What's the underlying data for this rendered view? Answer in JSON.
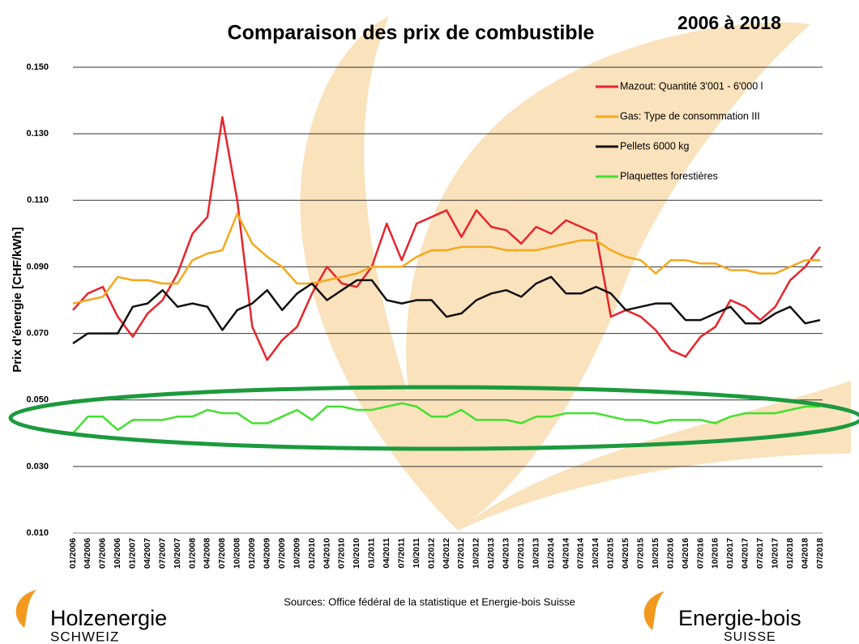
{
  "chart_data": {
    "type": "line",
    "title": "Comparaison des prix de combustible",
    "subtitle": "2006 à 2018",
    "y_label": "Prix d'énergie [CHF/kWh]",
    "source": "Sources: Office fédéral de la statistique et Energie-bois Suisse",
    "categories": [
      "01/2006",
      "04/2006",
      "07/2006",
      "10/2006",
      "01/2007",
      "04/2007",
      "07/2007",
      "10/2007",
      "01/2008",
      "04/2008",
      "07/2008",
      "10/2008",
      "01/2009",
      "04/2009",
      "07/2009",
      "10/2009",
      "01/2010",
      "04/2010",
      "07/2010",
      "10/2010",
      "01/2011",
      "04/2011",
      "07/2011",
      "10/2011",
      "01/2012",
      "04/2012",
      "07/2012",
      "10/2012",
      "01/2013",
      "04/2013",
      "07/2013",
      "10/2013",
      "01/2014",
      "04/2014",
      "07/2014",
      "10/2014",
      "01/2015",
      "04/2015",
      "07/2015",
      "10/2015",
      "01/2016",
      "04/2016",
      "07/2016",
      "10/2016",
      "01/2017",
      "04/2017",
      "07/2017",
      "10/2017",
      "01/2018",
      "04/2018",
      "07/2018"
    ],
    "series": [
      {
        "name": "Mazout: Quantité 3'001 - 6'000 l",
        "color": "#e8242b",
        "values": [
          0.077,
          0.082,
          0.084,
          0.075,
          0.069,
          0.076,
          0.08,
          0.088,
          0.1,
          0.105,
          0.135,
          0.11,
          0.072,
          0.062,
          0.068,
          0.072,
          0.082,
          0.09,
          0.085,
          0.084,
          0.09,
          0.103,
          0.092,
          0.103,
          0.105,
          0.107,
          0.099,
          0.107,
          0.102,
          0.101,
          0.097,
          0.102,
          0.1,
          0.104,
          0.102,
          0.1,
          0.075,
          0.077,
          0.075,
          0.071,
          0.065,
          0.063,
          0.069,
          0.072,
          0.08,
          0.078,
          0.074,
          0.078,
          0.086,
          0.09,
          0.096
        ]
      },
      {
        "name": "Gas: Type de consommation III",
        "color": "#f5a81c",
        "values": [
          0.079,
          0.08,
          0.081,
          0.087,
          0.086,
          0.086,
          0.085,
          0.085,
          0.092,
          0.094,
          0.095,
          0.106,
          0.097,
          0.093,
          0.09,
          0.085,
          0.085,
          0.086,
          0.087,
          0.088,
          0.09,
          0.09,
          0.09,
          0.093,
          0.095,
          0.095,
          0.096,
          0.096,
          0.096,
          0.095,
          0.095,
          0.095,
          0.096,
          0.097,
          0.098,
          0.098,
          0.095,
          0.093,
          0.092,
          0.088,
          0.092,
          0.092,
          0.091,
          0.091,
          0.089,
          0.089,
          0.088,
          0.088,
          0.09,
          0.092,
          0.092
        ]
      },
      {
        "name": "Pellets 6000 kg",
        "color": "#111111",
        "values": [
          0.067,
          0.07,
          0.07,
          0.07,
          0.078,
          0.079,
          0.083,
          0.078,
          0.079,
          0.078,
          0.071,
          0.077,
          0.079,
          0.083,
          0.077,
          0.082,
          0.085,
          0.08,
          0.083,
          0.086,
          0.086,
          0.08,
          0.079,
          0.08,
          0.08,
          0.075,
          0.076,
          0.08,
          0.082,
          0.083,
          0.081,
          0.085,
          0.087,
          0.082,
          0.082,
          0.084,
          0.082,
          0.077,
          0.078,
          0.079,
          0.079,
          0.074,
          0.074,
          0.076,
          0.078,
          0.073,
          0.073,
          0.076,
          0.078,
          0.073,
          0.074
        ]
      },
      {
        "name": "Plaquettes forestières",
        "color": "#43e02f",
        "values": [
          0.04,
          0.045,
          0.045,
          0.041,
          0.044,
          0.044,
          0.044,
          0.045,
          0.045,
          0.047,
          0.046,
          0.046,
          0.043,
          0.043,
          0.045,
          0.047,
          0.044,
          0.048,
          0.048,
          0.047,
          0.047,
          0.048,
          0.049,
          0.048,
          0.045,
          0.045,
          0.047,
          0.044,
          0.044,
          0.044,
          0.043,
          0.045,
          0.045,
          0.046,
          0.046,
          0.046,
          0.045,
          0.044,
          0.044,
          0.043,
          0.044,
          0.044,
          0.044,
          0.043,
          0.045,
          0.046,
          0.046,
          0.046,
          0.047,
          0.048,
          0.048
        ]
      }
    ],
    "ylim": [
      0.01,
      0.15
    ],
    "yticks": [
      {
        "value": 0.01,
        "label": "0.010"
      },
      {
        "value": 0.03,
        "label": "0.030"
      },
      {
        "value": 0.05,
        "label": "0.050"
      },
      {
        "value": 0.07,
        "label": "0.070"
      },
      {
        "value": 0.09,
        "label": "0.090"
      },
      {
        "value": 0.11,
        "label": "0.110"
      },
      {
        "value": 0.13,
        "label": "0.130"
      },
      {
        "value": 0.15,
        "label": "0.150"
      }
    ],
    "grid": true,
    "legend": "top-right"
  },
  "logos": [
    {
      "name": "Holzenergie",
      "sub": "SCHWEIZ"
    },
    {
      "name": "Energie-bois",
      "sub": "SUISSE"
    }
  ]
}
